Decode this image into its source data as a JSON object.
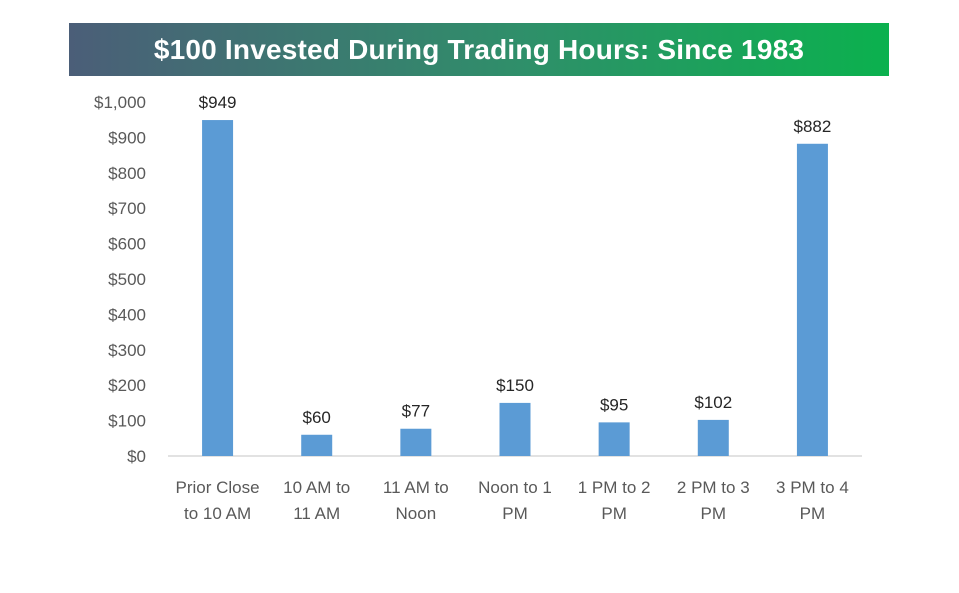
{
  "title": "$100 Invested During Trading Hours: Since 1983",
  "colors": {
    "bar": "#5b9bd5",
    "title_gradient_start": "#4b5e78",
    "title_gradient_end": "#0bb14e"
  },
  "chart_data": {
    "type": "bar",
    "title": "$100 Invested During Trading Hours: Since 1983",
    "categories": [
      [
        "Prior Close",
        "to 10 AM"
      ],
      [
        "10 AM to",
        "11 AM"
      ],
      [
        "11 AM to",
        "Noon"
      ],
      [
        "Noon to 1",
        "PM"
      ],
      [
        "1 PM to 2",
        "PM"
      ],
      [
        "2 PM to 3",
        "PM"
      ],
      [
        "3 PM to 4",
        "PM"
      ]
    ],
    "values": [
      949,
      60,
      77,
      150,
      95,
      102,
      882
    ],
    "data_labels": [
      "$949",
      "$60",
      "$77",
      "$150",
      "$95",
      "$102",
      "$882"
    ],
    "yticks": [
      "$0",
      "$100",
      "$200",
      "$300",
      "$400",
      "$500",
      "$600",
      "$700",
      "$800",
      "$900",
      "$1,000"
    ],
    "ylim": [
      0,
      1000
    ],
    "xlabel": "",
    "ylabel": "",
    "grid": false,
    "legend": "none"
  }
}
